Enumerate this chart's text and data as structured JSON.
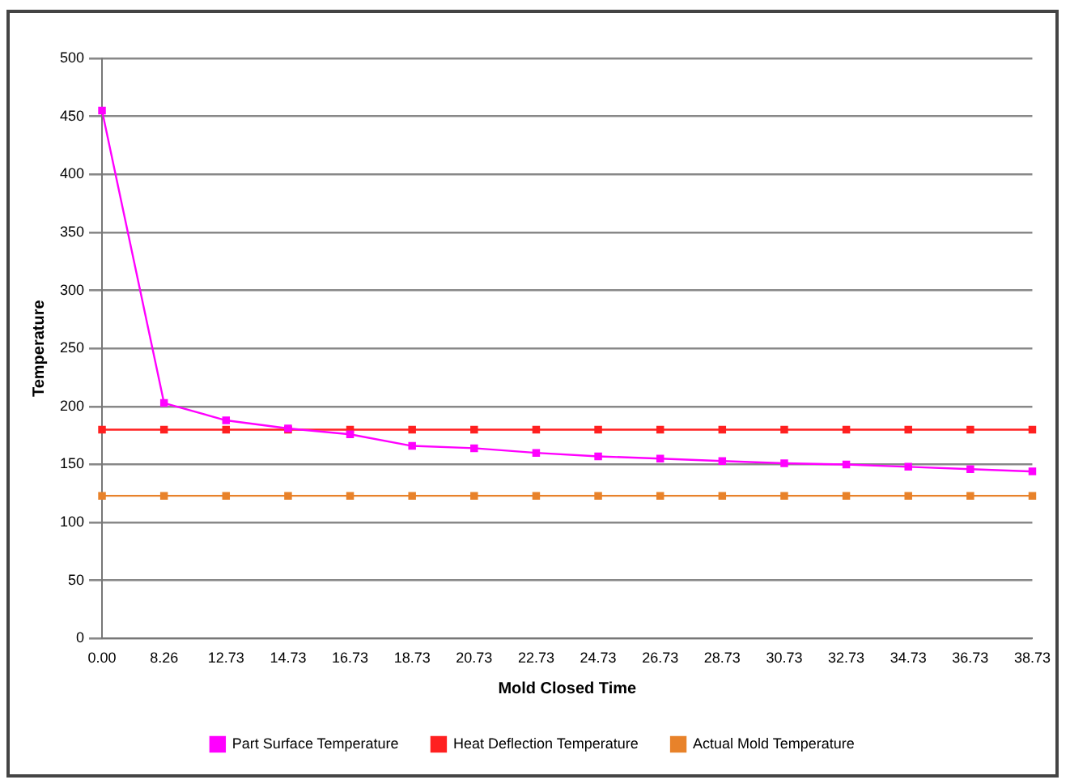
{
  "chart_data": {
    "type": "line",
    "xlabel": "Mold Closed Time",
    "ylabel": "Temperature",
    "categories": [
      "0.00",
      "8.26",
      "12.73",
      "14.73",
      "16.73",
      "18.73",
      "20.73",
      "22.73",
      "24.73",
      "26.73",
      "28.73",
      "30.73",
      "32.73",
      "34.73",
      "36.73",
      "38.73"
    ],
    "series": [
      {
        "name": "Part Surface Temperature",
        "color": "#ff00ff",
        "values": [
          455,
          203,
          188,
          181,
          176,
          166,
          164,
          160,
          157,
          155,
          153,
          151,
          150,
          148,
          146,
          144
        ]
      },
      {
        "name": "Heat Deflection Temperature",
        "color": "#ff2020",
        "values": [
          180,
          180,
          180,
          180,
          180,
          180,
          180,
          180,
          180,
          180,
          180,
          180,
          180,
          180,
          180,
          180
        ]
      },
      {
        "name": "Actual Mold Temperature",
        "color": "#e8822a",
        "values": [
          123,
          123,
          123,
          123,
          123,
          123,
          123,
          123,
          123,
          123,
          123,
          123,
          123,
          123,
          123,
          123
        ]
      }
    ],
    "ylim": [
      0,
      500
    ],
    "yticks": [
      0,
      50,
      100,
      150,
      200,
      250,
      300,
      350,
      400,
      450,
      500
    ],
    "grid": "y",
    "legend": "bottom",
    "marker": "square",
    "line_style": "solid"
  }
}
